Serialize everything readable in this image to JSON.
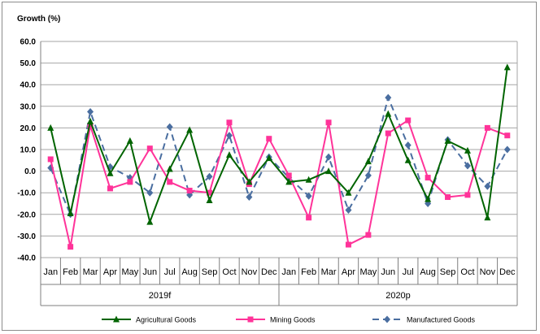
{
  "chart_data": {
    "type": "line",
    "ylabel": "Growth  (%)",
    "ylim": [
      -40,
      60
    ],
    "yticks": [
      "60.0",
      "50.0",
      "40.0",
      "30.0",
      "20.0",
      "10.0",
      "0.0",
      "-10.0",
      "-20.0",
      "-30.0",
      "-40.0"
    ],
    "ytick_values": [
      60,
      50,
      40,
      30,
      20,
      10,
      0,
      -10,
      -20,
      -30,
      -40
    ],
    "categories": [
      "Jan",
      "Feb",
      "Mar",
      "Apr",
      "May",
      "Jun",
      "Jul",
      "Aug",
      "Sep",
      "Oct",
      "Nov",
      "Dec",
      "Jan",
      "Feb",
      "Mar",
      "Apr",
      "May",
      "Jun",
      "Jul",
      "Aug",
      "Sep",
      "Oct",
      "Nov",
      "Dec"
    ],
    "groups": [
      {
        "label": "2019f",
        "count": 12
      },
      {
        "label": "2020p",
        "count": 12
      }
    ],
    "grid": true,
    "legend_position": "bottom",
    "series": [
      {
        "name": "Agricultural Goods",
        "color": "#006400",
        "marker": "triangle",
        "dash": "solid",
        "values": [
          20,
          -19.5,
          23,
          -1,
          14,
          -23.5,
          1,
          19,
          -13.5,
          7.5,
          -5,
          6,
          -5,
          -4,
          0,
          -10,
          4.5,
          26.5,
          5,
          -13,
          14,
          9.5,
          -21.5,
          48
        ]
      },
      {
        "name": "Mining Goods",
        "color": "#ff3399",
        "marker": "square",
        "dash": "solid",
        "values": [
          5.5,
          -35,
          21,
          -8,
          -5,
          10.5,
          -5,
          -9,
          -10,
          22.5,
          -6,
          15,
          -2,
          -21.5,
          22.5,
          -34,
          -29.5,
          17.5,
          23.5,
          -3,
          -12,
          -11,
          20,
          16.5
        ]
      },
      {
        "name": "Manufactured Goods",
        "color": "#4a6ea0",
        "marker": "diamond",
        "dash": "dashed",
        "values": [
          1.5,
          -20,
          27.5,
          2,
          -3,
          -10,
          20.5,
          -11,
          -2.5,
          16.5,
          -12,
          6.5,
          -3,
          -11.5,
          6.5,
          -18,
          -2,
          34,
          12,
          -15,
          14.5,
          2.5,
          -7,
          10
        ]
      }
    ]
  }
}
